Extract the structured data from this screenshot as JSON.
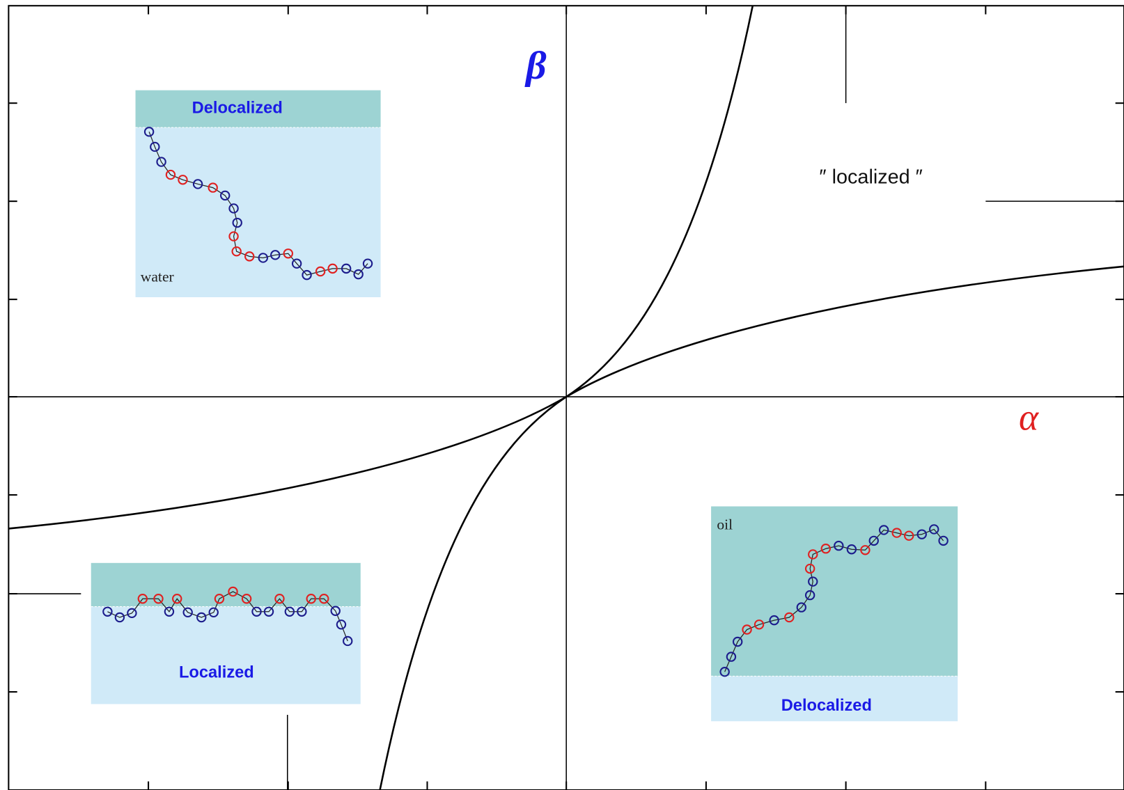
{
  "axes": {
    "vertical": "β",
    "horizontal": "α"
  },
  "regime_label": "″ localized ″",
  "insets": [
    {
      "state": "Delocalized",
      "medium": "water"
    },
    {
      "state": "Localized"
    },
    {
      "state": "Delocalized",
      "medium": "oil"
    }
  ]
}
